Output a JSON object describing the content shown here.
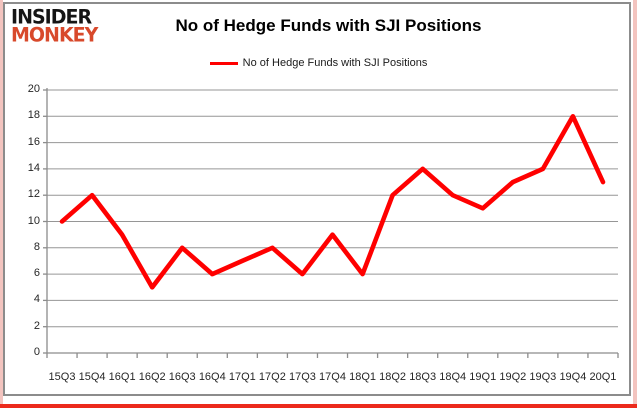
{
  "branding": {
    "logo_line1": "INSIDER",
    "logo_line2": "MONKEY",
    "logo_color_top": "#151515",
    "logo_color_bottom": "#d8492b"
  },
  "header": {
    "title": "No of Hedge Funds with SJI Positions"
  },
  "legend": {
    "label": "No of Hedge Funds with SJI Positions",
    "swatch_color": "#ff0000",
    "position": "top"
  },
  "chart_data": {
    "type": "line",
    "title": "No of Hedge Funds with SJI Positions",
    "categories": [
      "15Q3",
      "15Q4",
      "16Q1",
      "16Q2",
      "16Q3",
      "16Q4",
      "17Q1",
      "17Q2",
      "17Q3",
      "17Q4",
      "18Q1",
      "18Q2",
      "18Q3",
      "18Q4",
      "19Q1",
      "19Q2",
      "19Q3",
      "19Q4",
      "20Q1"
    ],
    "series": [
      {
        "name": "No of Hedge Funds with SJI Positions",
        "color": "#ff0000",
        "values": [
          10,
          12,
          9,
          5,
          8,
          6,
          7,
          8,
          6,
          9,
          6,
          12,
          14,
          12,
          11,
          13,
          14,
          18,
          13
        ]
      }
    ],
    "xlabel": "",
    "ylabel": "",
    "ylim": [
      0,
      20
    ],
    "yticks": [
      0,
      2,
      4,
      6,
      8,
      10,
      12,
      14,
      16,
      18,
      20
    ],
    "grid": true,
    "gridline_color": "#969696",
    "axis_color": "#8c8c8c",
    "legend_position": "top"
  },
  "colors": {
    "line_red": "#ff0000",
    "bottom_bar_red": "#ec2a1c",
    "side_border_pink": "#f3c4bf",
    "frame_gray": "#8c8c8c"
  }
}
